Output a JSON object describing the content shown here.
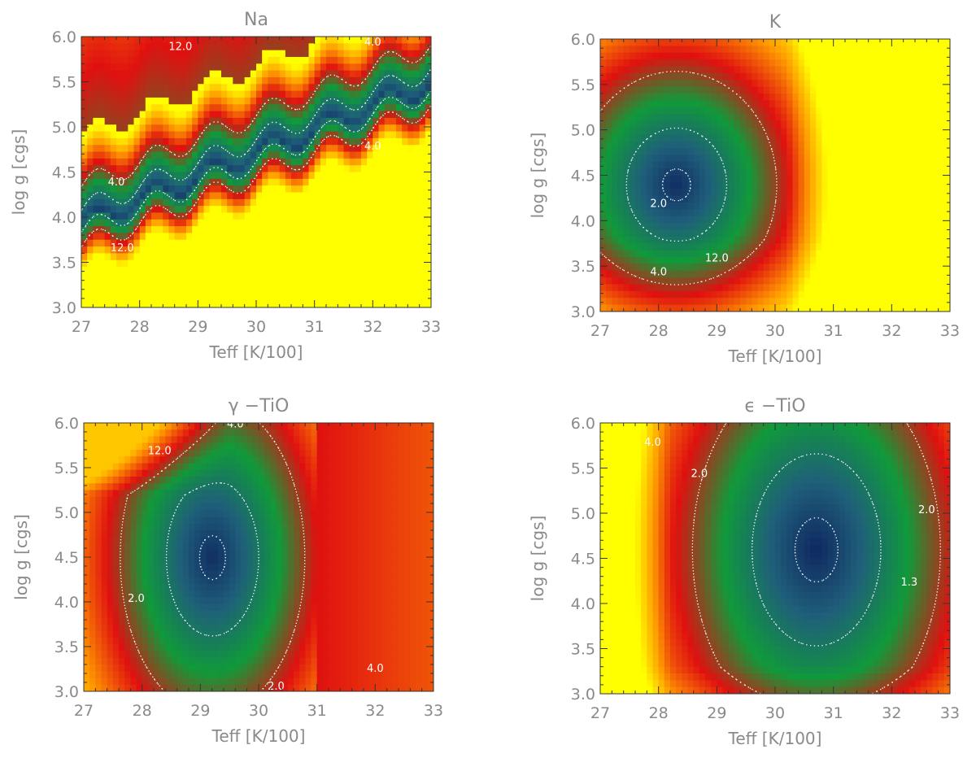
{
  "chart_data": [
    {
      "type": "heatmap",
      "title": "Na",
      "xlabel": "Teff [K/100]",
      "ylabel": "log g [cgs]",
      "xlim": [
        27,
        33
      ],
      "ylim": [
        3.0,
        6.0
      ],
      "x_ticks": [
        "27",
        "28",
        "29",
        "30",
        "31",
        "32",
        "33"
      ],
      "y_ticks": [
        "3.0",
        "3.5",
        "4.0",
        "4.5",
        "5.0",
        "5.5",
        "6.0"
      ],
      "colormap": [
        "#0d1f5c",
        "#1f5f7a",
        "#109a3a",
        "#e01010",
        "#ff9a00",
        "#ffff00"
      ],
      "contour_labels": [
        {
          "text": "12.0",
          "x": 28.7,
          "y": 5.85
        },
        {
          "text": "4.0",
          "x": 32.0,
          "y": 5.9
        },
        {
          "text": "4.0",
          "x": 27.6,
          "y": 4.35
        },
        {
          "text": "4.0",
          "x": 32.0,
          "y": 4.75
        },
        {
          "text": "12.0",
          "x": 27.7,
          "y": 3.62
        }
      ]
    },
    {
      "type": "heatmap",
      "title": "K",
      "xlabel": "Teff [K/100]",
      "ylabel": "log g [cgs]",
      "xlim": [
        27,
        33
      ],
      "ylim": [
        3.0,
        6.0
      ],
      "x_ticks": [
        "27",
        "28",
        "29",
        "30",
        "31",
        "32",
        "33"
      ],
      "y_ticks": [
        "3.0",
        "3.5",
        "4.0",
        "4.5",
        "5.0",
        "5.5",
        "6.0"
      ],
      "colormap": [
        "#0d1f5c",
        "#1f5f7a",
        "#109a3a",
        "#e01010",
        "#ff9a00",
        "#ffff00"
      ],
      "contour_labels": [
        {
          "text": "12.0",
          "x": 29.9,
          "y": 6.0
        },
        {
          "text": "2.0",
          "x": 28.0,
          "y": 4.15
        },
        {
          "text": "4.0",
          "x": 28.0,
          "y": 3.4
        },
        {
          "text": "12.0",
          "x": 29.0,
          "y": 3.55
        }
      ]
    },
    {
      "type": "heatmap",
      "title": "γ −TiO",
      "xlabel": "Teff [K/100]",
      "ylabel": "log g [cgs]",
      "xlim": [
        27,
        33
      ],
      "ylim": [
        3.0,
        6.0
      ],
      "x_ticks": [
        "27",
        "28",
        "29",
        "30",
        "31",
        "32",
        "33"
      ],
      "y_ticks": [
        "3.0",
        "3.5",
        "4.0",
        "4.5",
        "5.0",
        "5.5",
        "6.0"
      ],
      "colormap": [
        "#0d1f5c",
        "#1f5f7a",
        "#109a3a",
        "#e01010",
        "#ff9a00",
        "#ffff00"
      ],
      "contour_labels": [
        {
          "text": "12.0",
          "x": 28.3,
          "y": 5.65
        },
        {
          "text": "4.0",
          "x": 29.6,
          "y": 5.95
        },
        {
          "text": "2.0",
          "x": 27.9,
          "y": 4.0
        },
        {
          "text": "2.0",
          "x": 30.3,
          "y": 3.02
        },
        {
          "text": "4.0",
          "x": 32.0,
          "y": 3.22
        }
      ]
    },
    {
      "type": "heatmap",
      "title": "ϵ −TiO",
      "xlabel": "Teff [K/100]",
      "ylabel": "log g [cgs]",
      "xlim": [
        27,
        33
      ],
      "ylim": [
        3.0,
        6.0
      ],
      "x_ticks": [
        "27",
        "28",
        "29",
        "30",
        "31",
        "32",
        "33"
      ],
      "y_ticks": [
        "3.0",
        "3.5",
        "4.0",
        "4.5",
        "5.0",
        "5.5",
        "6.0"
      ],
      "colormap": [
        "#0d1f5c",
        "#1f5f7a",
        "#109a3a",
        "#e01010",
        "#ff9a00",
        "#ffff00"
      ],
      "contour_labels": [
        {
          "text": "4.0",
          "x": 27.9,
          "y": 5.75
        },
        {
          "text": "2.0",
          "x": 28.7,
          "y": 5.4
        },
        {
          "text": "2.0",
          "x": 32.6,
          "y": 5.0
        },
        {
          "text": "1.3",
          "x": 32.3,
          "y": 4.2
        }
      ]
    }
  ]
}
